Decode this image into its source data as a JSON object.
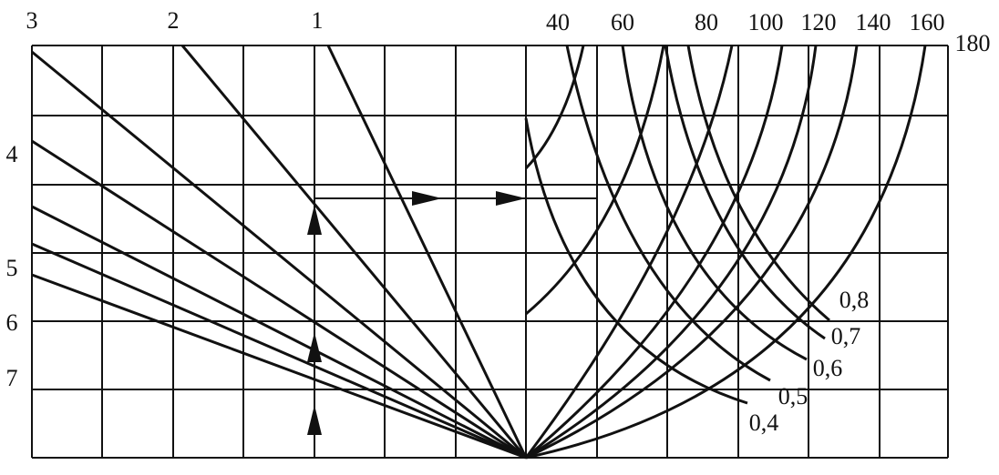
{
  "top_scale": [
    "3",
    "2",
    "1",
    "40",
    "60",
    "80",
    "100",
    "120",
    "140",
    "160"
  ],
  "right_scale_end": "180",
  "left_scale": [
    "4",
    "5",
    "6",
    "7"
  ],
  "curve_labels": [
    "0,8",
    "0,7",
    "0,6",
    "0,5",
    "0,4"
  ]
}
